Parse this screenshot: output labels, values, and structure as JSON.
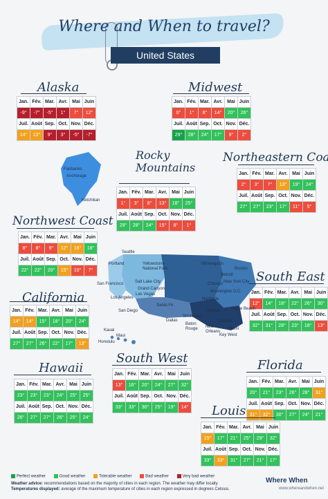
{
  "title": "Where and When to travel?",
  "subtitle": "United States",
  "months_row1": [
    "Jan.",
    "Fév.",
    "Mar.",
    "Avr.",
    "Mai",
    "Juin"
  ],
  "months_row2": [
    "Juil.",
    "Août",
    "Sep.",
    "Oct.",
    "Nov.",
    "Déc."
  ],
  "regions": [
    {
      "name": "Alaska",
      "row1": [
        "-9°",
        "-7°",
        "-5°",
        "1°",
        "7°",
        "12°"
      ],
      "row2": [
        "14°",
        "13°",
        "9°",
        "3°",
        "-5°",
        "-7°"
      ],
      "c1": [
        "dr",
        "dr",
        "dr",
        "dr",
        "r",
        "r"
      ],
      "c2": [
        "o",
        "o",
        "dr",
        "dr",
        "dr",
        "dr"
      ]
    },
    {
      "name": "Midwest",
      "row1": [
        "0°",
        "1°",
        "8°",
        "14°",
        "20°",
        "26°"
      ],
      "row2": [
        "29°",
        "28°",
        "24°",
        "17°",
        "9°",
        "2°"
      ],
      "c1": [
        "r",
        "r",
        "r",
        "r",
        "lg",
        "lg"
      ],
      "c2": [
        "g",
        "lg",
        "lg",
        "lg",
        "r",
        "r"
      ]
    },
    {
      "name": "Rocky Mountains",
      "row1": [
        "1°",
        "3°",
        "8°",
        "13°",
        "18°",
        "25°"
      ],
      "row2": [
        "29°",
        "28°",
        "24°",
        "15°",
        "8°",
        "1°"
      ],
      "c1": [
        "r",
        "r",
        "r",
        "r",
        "lg",
        "lg"
      ],
      "c2": [
        "lg",
        "lg",
        "lg",
        "r",
        "r",
        "r"
      ]
    },
    {
      "name": "Northeastern Coast",
      "row1": [
        "2°",
        "3°",
        "7°",
        "13°",
        "19°",
        "24°"
      ],
      "row2": [
        "27°",
        "27°",
        "23°",
        "17°",
        "11°",
        "5°"
      ],
      "c1": [
        "r",
        "r",
        "r",
        "o",
        "lg",
        "lg"
      ],
      "c2": [
        "lg",
        "lg",
        "lg",
        "lg",
        "r",
        "r"
      ]
    },
    {
      "name": "Northwest Coast",
      "row1": [
        "8°",
        "8°",
        "9°",
        "12°",
        "16°",
        "18°"
      ],
      "row2": [
        "22°",
        "22°",
        "20°",
        "15°",
        "10°",
        "7°"
      ],
      "c1": [
        "r",
        "r",
        "r",
        "o",
        "o",
        "lg"
      ],
      "c2": [
        "lg",
        "lg",
        "lg",
        "o",
        "r",
        "r"
      ]
    },
    {
      "name": "South East",
      "row1": [
        "12°",
        "14°",
        "18°",
        "22°",
        "26°",
        "30°"
      ],
      "row2": [
        "32°",
        "31°",
        "28°",
        "23°",
        "18°",
        "13°"
      ],
      "c1": [
        "r",
        "lg",
        "lg",
        "lg",
        "lg",
        "lg"
      ],
      "c2": [
        "lg",
        "lg",
        "lg",
        "lg",
        "lg",
        "r"
      ]
    },
    {
      "name": "California",
      "row1": [
        "14°",
        "14°",
        "15°",
        "18°",
        "20°",
        "24°"
      ],
      "row2": [
        "27°",
        "27°",
        "26°",
        "22°",
        "17°",
        "13°"
      ],
      "c1": [
        "o",
        "o",
        "lg",
        "lg",
        "lg",
        "lg"
      ],
      "c2": [
        "lg",
        "lg",
        "lg",
        "lg",
        "lg",
        "o"
      ]
    },
    {
      "name": "Florida",
      "row1": [
        "20°",
        "21°",
        "23°",
        "26°",
        "28°",
        "31°"
      ],
      "row2": [
        "31°",
        "32°",
        "30°",
        "27°",
        "24°",
        "21°"
      ],
      "c1": [
        "lg",
        "lg",
        "lg",
        "lg",
        "lg",
        "o"
      ],
      "c2": [
        "o",
        "o",
        "lg",
        "lg",
        "lg",
        "lg"
      ]
    },
    {
      "name": "South West",
      "row1": [
        "13°",
        "16°",
        "20°",
        "24°",
        "27°",
        "32°"
      ],
      "row2": [
        "33°",
        "33°",
        "30°",
        "25°",
        "19°",
        "14°"
      ],
      "c1": [
        "r",
        "lg",
        "lg",
        "lg",
        "lg",
        "lg"
      ],
      "c2": [
        "lg",
        "lg",
        "lg",
        "lg",
        "lg",
        "r"
      ]
    },
    {
      "name": "Hawaii",
      "row1": [
        "23°",
        "23°",
        "23°",
        "24°",
        "25°",
        "25°"
      ],
      "row2": [
        "26°",
        "27°",
        "27°",
        "26°",
        "25°",
        "24°"
      ],
      "c1": [
        "lg",
        "lg",
        "lg",
        "lg",
        "lg",
        "lg"
      ],
      "c2": [
        "lg",
        "lg",
        "lg",
        "lg",
        "lg",
        "lg"
      ]
    },
    {
      "name": "Louisiana",
      "row1": [
        "15°",
        "17°",
        "21°",
        "25°",
        "29°",
        "32°"
      ],
      "row2": [
        "33°",
        "33°",
        "31°",
        "27°",
        "21°",
        "17°"
      ],
      "c1": [
        "o",
        "lg",
        "lg",
        "lg",
        "lg",
        "lg"
      ],
      "c2": [
        "lg",
        "o",
        "lg",
        "lg",
        "lg",
        "lg"
      ]
    }
  ],
  "cities": [
    "Fairbanks",
    "Anchorage",
    "Ketchikan",
    "Seattle",
    "Portland",
    "Yellowstone National Park",
    "Minneapolis",
    "Chicago",
    "Detroit",
    "Boston",
    "New York City",
    "Washington D.C.",
    "Salt Lake City",
    "Grand Canyon",
    "Las Vegas",
    "San Francisco",
    "Los Angeles",
    "San Diego",
    "Santa Fe",
    "Dallas",
    "Nashville",
    "Atlanta",
    "Myrtle Beach",
    "Shreveport",
    "Baton Rouge",
    "New Orleans",
    "Orlando",
    "Miami",
    "Key West",
    "Kauai",
    "Maui",
    "Honolulu"
  ],
  "legend": {
    "items": [
      "Perfect weather",
      "Good weather",
      "Tolerable weather",
      "Bad weather",
      "Very bad weather"
    ],
    "advice_label": "Weather advice:",
    "advice": "recommendations based on the majority of cities in each region. The weather may differ locally.",
    "temps_label": "Temperatures displayed:",
    "temps": "average of the maximum temperature of cities in each region expressed in degrees Celsius."
  },
  "brand": "Where When",
  "site": "www.whereandwhen.net"
}
